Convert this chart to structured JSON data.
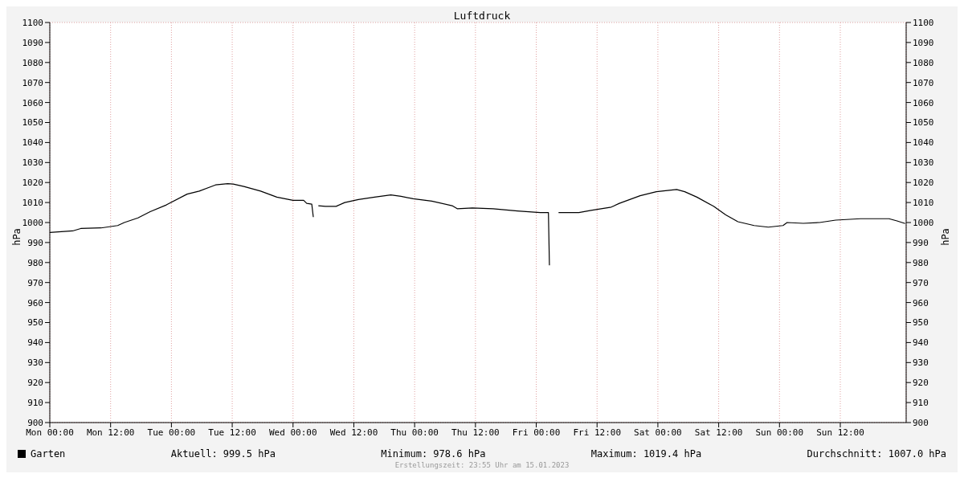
{
  "chart_data": {
    "type": "line",
    "title": "Luftdruck",
    "ylabel": "hPa",
    "y2label": "hPa",
    "x": [
      "2023-01-09T00:00",
      "2023-01-09T04:30",
      "2023-01-09T06:06",
      "2023-01-09T10:06",
      "2023-01-09T13:24",
      "2023-01-09T14:42",
      "2023-01-09T17:24",
      "2023-01-09T19:48",
      "2023-01-09T23:00",
      "2023-01-10T03:06",
      "2023-01-10T05:30",
      "2023-01-10T08:42",
      "2023-01-10T11:06",
      "2023-01-10T12:12",
      "2023-01-10T14:18",
      "2023-01-10T17:36",
      "2023-01-10T20:48",
      "2023-01-11T00:00",
      "2023-01-11T02:06",
      "2023-01-11T02:42",
      "2023-01-11T03:42",
      "2023-01-11T04:00",
      "2023-01-11T04:30",
      "2023-01-11T05:00",
      "2023-01-11T06:24",
      "2023-01-11T08:30",
      "2023-01-11T10:12",
      "2023-01-11T12:54",
      "2023-01-11T16:06",
      "2023-01-11T19:18",
      "2023-01-11T21:18",
      "2023-01-11T23:42",
      "2023-01-12T03:24",
      "2023-01-12T07:24",
      "2023-01-12T08:24",
      "2023-01-12T11:24",
      "2023-01-12T15:30",
      "2023-01-12T20:18",
      "2023-01-13T00:48",
      "2023-01-13T02:24",
      "2023-01-13T02:36",
      "2023-01-13T03:30",
      "2023-01-13T04:24",
      "2023-01-13T08:24",
      "2023-01-13T10:48",
      "2023-01-13T14:48",
      "2023-01-13T16:24",
      "2023-01-13T20:30",
      "2023-01-13T23:42",
      "2023-01-14T03:42",
      "2023-01-14T05:18",
      "2023-01-14T07:42",
      "2023-01-14T11:00",
      "2023-01-14T13:24",
      "2023-01-14T15:48",
      "2023-01-14T19:00",
      "2023-01-14T21:48",
      "2023-01-15T00:42",
      "2023-01-15T01:30",
      "2023-01-15T04:42",
      "2023-01-15T07:54",
      "2023-01-15T11:06",
      "2023-01-15T16:00",
      "2023-01-15T21:36",
      "2023-01-15T23:12",
      "2023-01-16T00:48"
    ],
    "series": [
      {
        "name": "Garten",
        "color": "#000000",
        "values": [
          995.0,
          995.8,
          997,
          997.3,
          998.5,
          1000,
          1002.3,
          1005.4,
          1008.8,
          1014.2,
          1015.7,
          1018.8,
          1019.4,
          1019.2,
          1018,
          1015.7,
          1012.7,
          1011.1,
          1011.1,
          1009.6,
          1009.2,
          1002.7,
          null,
          1008.4,
          1008.1,
          1008.1,
          1010,
          1011.5,
          1012.7,
          1013.8,
          1013.1,
          1011.9,
          1010.7,
          1008.4,
          1006.9,
          1007.3,
          1006.9,
          1005.8,
          1005,
          1005,
          978.6,
          null,
          1005,
          1005,
          1006.1,
          1007.7,
          1009.6,
          1013.4,
          1015.4,
          1016.5,
          1015.4,
          1012.7,
          1008.1,
          1003.8,
          1000.4,
          998.5,
          997.7,
          998.5,
          1000,
          999.6,
          1000,
          1001.2,
          1001.9,
          1001.9,
          1000.8,
          999.5
        ]
      }
    ],
    "xlim": [
      "2023-01-09T00:00",
      "2023-01-16T01:00"
    ],
    "xticks": [
      {
        "value": "2023-01-09T00:00",
        "label": "Mon 00:00"
      },
      {
        "value": "2023-01-09T12:00",
        "label": "Mon 12:00"
      },
      {
        "value": "2023-01-10T00:00",
        "label": "Tue 00:00"
      },
      {
        "value": "2023-01-10T12:00",
        "label": "Tue 12:00"
      },
      {
        "value": "2023-01-11T00:00",
        "label": "Wed 00:00"
      },
      {
        "value": "2023-01-11T12:00",
        "label": "Wed 12:00"
      },
      {
        "value": "2023-01-12T00:00",
        "label": "Thu 00:00"
      },
      {
        "value": "2023-01-12T12:00",
        "label": "Thu 12:00"
      },
      {
        "value": "2023-01-13T00:00",
        "label": "Fri 00:00"
      },
      {
        "value": "2023-01-13T12:00",
        "label": "Fri 12:00"
      },
      {
        "value": "2023-01-14T00:00",
        "label": "Sat 00:00"
      },
      {
        "value": "2023-01-14T12:00",
        "label": "Sat 12:00"
      },
      {
        "value": "2023-01-15T00:00",
        "label": "Sun 00:00"
      },
      {
        "value": "2023-01-15T12:00",
        "label": "Sun 12:00"
      }
    ],
    "ylim": [
      900,
      1100
    ],
    "yticks": [
      900,
      910,
      920,
      930,
      940,
      950,
      960,
      970,
      980,
      990,
      1000,
      1010,
      1020,
      1030,
      1040,
      1050,
      1060,
      1070,
      1080,
      1090,
      1100
    ],
    "y2lim": [
      900,
      1100
    ],
    "y2ticks": [
      900,
      910,
      920,
      930,
      940,
      950,
      960,
      970,
      980,
      990,
      1000,
      1010,
      1020,
      1030,
      1040,
      1050,
      1060,
      1070,
      1080,
      1090,
      1100
    ],
    "grid": true,
    "legend": "bottom left",
    "marker": "none",
    "line_style": "solid",
    "annotations": [
      "Aktuell: 999.5 hPa",
      "Minimum: 978.6 hPa",
      "Maximum: 1019.4 hPa",
      "Durchschnitt: 1007.0 hPa",
      "Erstellungszeit: 23:55 Uhr am 15.01.2023"
    ]
  }
}
